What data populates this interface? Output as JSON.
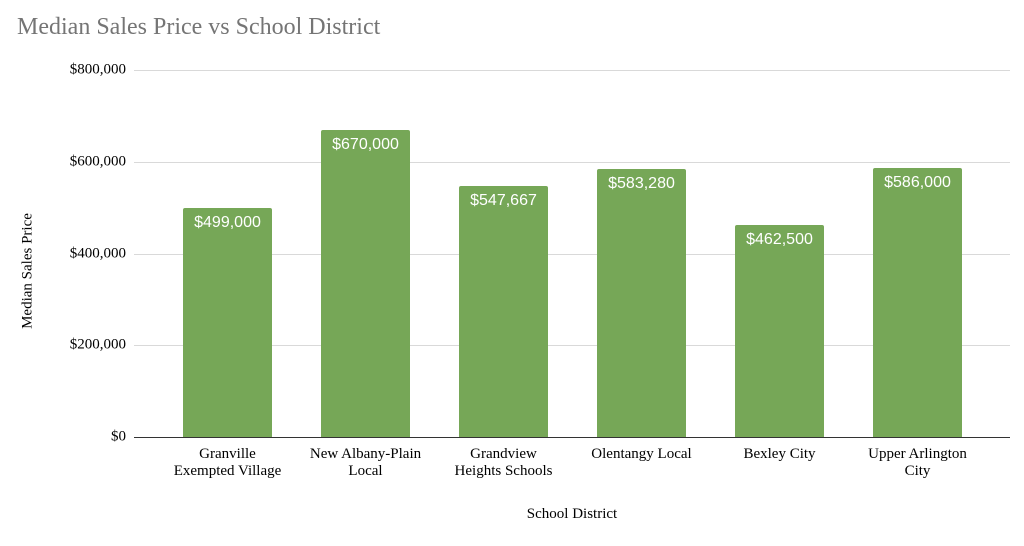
{
  "chart_data": {
    "type": "bar",
    "title": "Median Sales Price vs School District",
    "xlabel": "School District",
    "ylabel": "Median Sales Price",
    "categories": [
      "Granville Exempted Village",
      "New Albany-Plain Local",
      "Grandview Heights Schools",
      "Olentangy Local",
      "Bexley City",
      "Upper Arlington City"
    ],
    "category_lines": [
      [
        "Granville",
        "Exempted Village"
      ],
      [
        "New Albany-Plain",
        "Local"
      ],
      [
        "Grandview",
        "Heights Schools"
      ],
      [
        "Olentangy Local"
      ],
      [
        "Bexley City"
      ],
      [
        "Upper Arlington",
        "City"
      ]
    ],
    "values": [
      499000,
      670000,
      547667,
      583280,
      462500,
      586000
    ],
    "value_labels": [
      "$499,000",
      "$670,000",
      "$547,667",
      "$583,280",
      "$462,500",
      "$586,000"
    ],
    "yticks": [
      0,
      200000,
      400000,
      600000,
      800000
    ],
    "ytick_labels": [
      "$0",
      "$200,000",
      "$400,000",
      "$600,000",
      "$800,000"
    ],
    "ylim": [
      0,
      800000
    ],
    "grid": true,
    "legend": null,
    "bar_color": "#76a757"
  }
}
